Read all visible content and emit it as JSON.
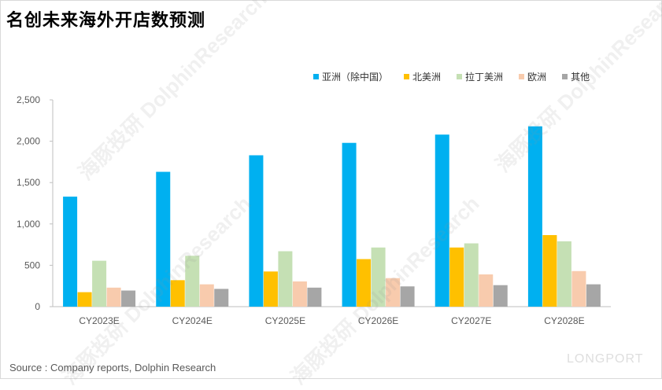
{
  "title": "名创未来海外开店数预测",
  "source": "Source : Company reports, Dolphin Research",
  "watermark": {
    "cn": "海豚投研",
    "en": "DolphinResearch",
    "brand": "LONGPORT"
  },
  "colors": {
    "asia": "#00b0f0",
    "north_america": "#ffc000",
    "latin_america": "#c5e0b4",
    "europe": "#f8cbad",
    "other": "#a6a6a6",
    "axis": "#bfbfbf",
    "tick_text": "#595959"
  },
  "chart_data": {
    "type": "bar",
    "title": "名创未来海外开店数预测",
    "categories": [
      "CY2023E",
      "CY2024E",
      "CY2025E",
      "CY2026E",
      "CY2027E",
      "CY2028E"
    ],
    "series": [
      {
        "name": "亚洲（除中国）",
        "values": [
          1330,
          1630,
          1830,
          1980,
          2080,
          2180
        ]
      },
      {
        "name": "北美洲",
        "values": [
          175,
          320,
          425,
          575,
          715,
          865
        ]
      },
      {
        "name": "拉丁美洲",
        "values": [
          555,
          615,
          670,
          715,
          765,
          790
        ]
      },
      {
        "name": "欧洲",
        "values": [
          230,
          270,
          305,
          345,
          390,
          430
        ]
      },
      {
        "name": "其他",
        "values": [
          195,
          215,
          230,
          245,
          260,
          270
        ]
      }
    ],
    "ylim": [
      0,
      2500
    ],
    "yticks": [
      0,
      500,
      1000,
      1500,
      2000,
      2500
    ],
    "ytick_labels": [
      "0",
      "500",
      "1,000",
      "1,500",
      "2,000",
      "2,500"
    ],
    "grid": false,
    "legend": "top-right",
    "xlabel": "",
    "ylabel": ""
  }
}
